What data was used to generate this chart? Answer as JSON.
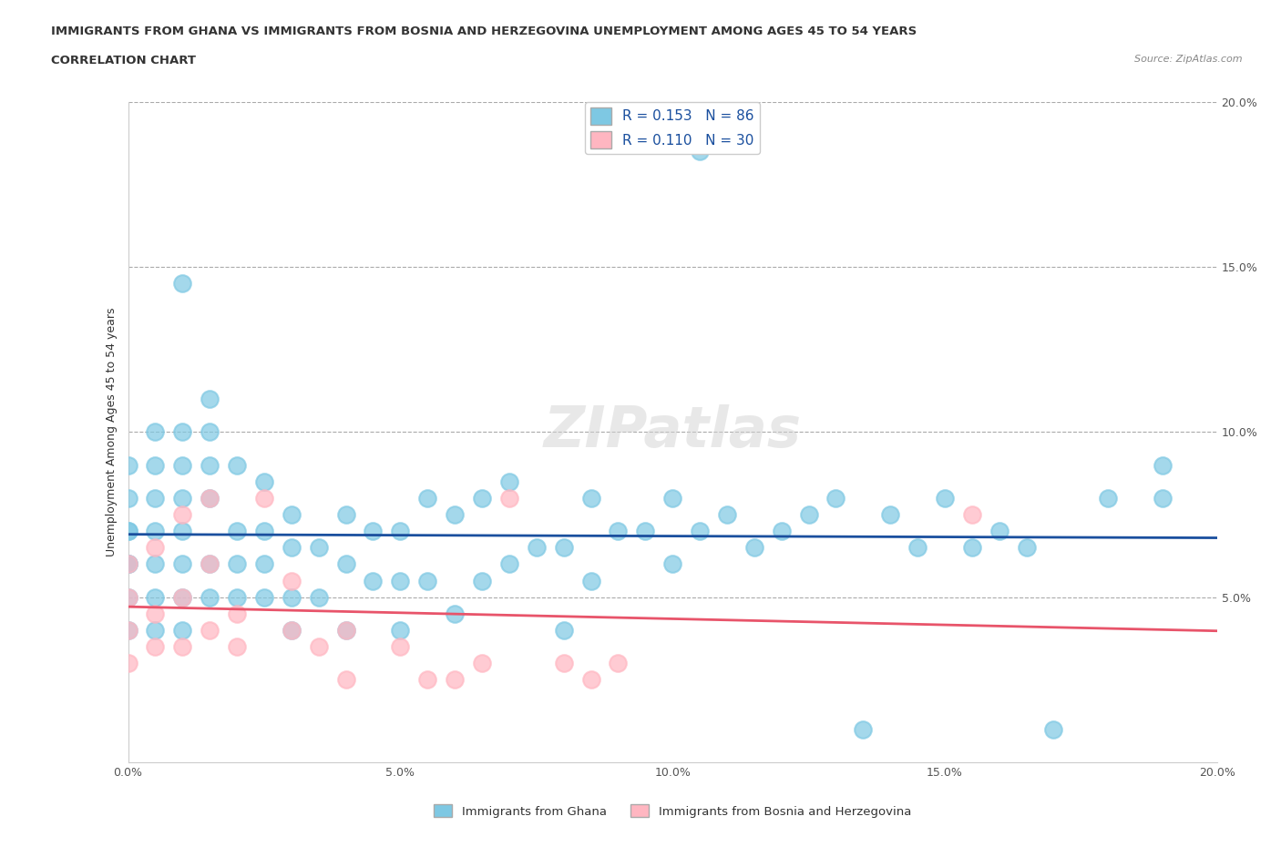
{
  "title_line1": "IMMIGRANTS FROM GHANA VS IMMIGRANTS FROM BOSNIA AND HERZEGOVINA UNEMPLOYMENT AMONG AGES 45 TO 54 YEARS",
  "title_line2": "CORRELATION CHART",
  "source_text": "Source: ZipAtlas.com",
  "xlabel": "",
  "ylabel": "Unemployment Among Ages 45 to 54 years",
  "xlim": [
    0.0,
    0.2
  ],
  "ylim": [
    0.0,
    0.2
  ],
  "xticks": [
    0.0,
    0.05,
    0.1,
    0.15,
    0.2
  ],
  "yticks": [
    0.0,
    0.05,
    0.1,
    0.15,
    0.2
  ],
  "xticklabels": [
    "0.0%",
    "5.0%",
    "10.0%",
    "15.0%",
    "20.0%"
  ],
  "yticklabels": [
    "",
    "5.0%",
    "10.0%",
    "15.0%",
    "20.0%"
  ],
  "ghana_R": 0.153,
  "ghana_N": 86,
  "bosnia_R": 0.11,
  "bosnia_N": 30,
  "ghana_color": "#7ec8e3",
  "bosnia_color": "#ffb6c1",
  "ghana_line_color": "#1a4f9e",
  "bosnia_line_color": "#e8546a",
  "ghana_scatter_x": [
    0.0,
    0.0,
    0.0,
    0.0,
    0.0,
    0.0,
    0.0,
    0.0,
    0.005,
    0.005,
    0.005,
    0.005,
    0.005,
    0.005,
    0.005,
    0.01,
    0.01,
    0.01,
    0.01,
    0.01,
    0.01,
    0.01,
    0.01,
    0.015,
    0.015,
    0.015,
    0.015,
    0.015,
    0.015,
    0.02,
    0.02,
    0.02,
    0.02,
    0.025,
    0.025,
    0.025,
    0.025,
    0.03,
    0.03,
    0.03,
    0.03,
    0.035,
    0.035,
    0.04,
    0.04,
    0.04,
    0.045,
    0.045,
    0.05,
    0.05,
    0.05,
    0.055,
    0.055,
    0.06,
    0.06,
    0.065,
    0.065,
    0.07,
    0.07,
    0.075,
    0.08,
    0.08,
    0.085,
    0.085,
    0.09,
    0.095,
    0.1,
    0.1,
    0.105,
    0.11,
    0.115,
    0.12,
    0.125,
    0.13,
    0.135,
    0.14,
    0.145,
    0.15,
    0.155,
    0.16,
    0.165,
    0.17,
    0.18,
    0.19,
    0.19,
    0.105
  ],
  "ghana_scatter_y": [
    0.04,
    0.05,
    0.06,
    0.07,
    0.07,
    0.08,
    0.09,
    0.06,
    0.04,
    0.05,
    0.06,
    0.07,
    0.08,
    0.09,
    0.1,
    0.04,
    0.05,
    0.06,
    0.07,
    0.08,
    0.09,
    0.1,
    0.145,
    0.05,
    0.06,
    0.08,
    0.09,
    0.1,
    0.11,
    0.05,
    0.06,
    0.07,
    0.09,
    0.05,
    0.06,
    0.07,
    0.085,
    0.04,
    0.05,
    0.065,
    0.075,
    0.05,
    0.065,
    0.04,
    0.06,
    0.075,
    0.055,
    0.07,
    0.04,
    0.055,
    0.07,
    0.055,
    0.08,
    0.045,
    0.075,
    0.055,
    0.08,
    0.06,
    0.085,
    0.065,
    0.04,
    0.065,
    0.055,
    0.08,
    0.07,
    0.07,
    0.06,
    0.08,
    0.07,
    0.075,
    0.065,
    0.07,
    0.075,
    0.08,
    0.01,
    0.075,
    0.065,
    0.08,
    0.065,
    0.07,
    0.065,
    0.01,
    0.08,
    0.08,
    0.09,
    0.185
  ],
  "bosnia_scatter_x": [
    0.0,
    0.0,
    0.0,
    0.0,
    0.005,
    0.005,
    0.005,
    0.01,
    0.01,
    0.01,
    0.015,
    0.015,
    0.015,
    0.02,
    0.02,
    0.025,
    0.03,
    0.03,
    0.035,
    0.04,
    0.04,
    0.05,
    0.055,
    0.06,
    0.065,
    0.07,
    0.08,
    0.085,
    0.09,
    0.155
  ],
  "bosnia_scatter_y": [
    0.03,
    0.04,
    0.05,
    0.06,
    0.035,
    0.045,
    0.065,
    0.035,
    0.05,
    0.075,
    0.04,
    0.06,
    0.08,
    0.045,
    0.035,
    0.08,
    0.04,
    0.055,
    0.035,
    0.025,
    0.04,
    0.035,
    0.025,
    0.025,
    0.03,
    0.08,
    0.03,
    0.025,
    0.03,
    0.075
  ],
  "watermark": "ZIPatlas",
  "background_color": "#ffffff",
  "legend_ghana": "Immigrants from Ghana",
  "legend_bosnia": "Immigrants from Bosnia and Herzegovina"
}
